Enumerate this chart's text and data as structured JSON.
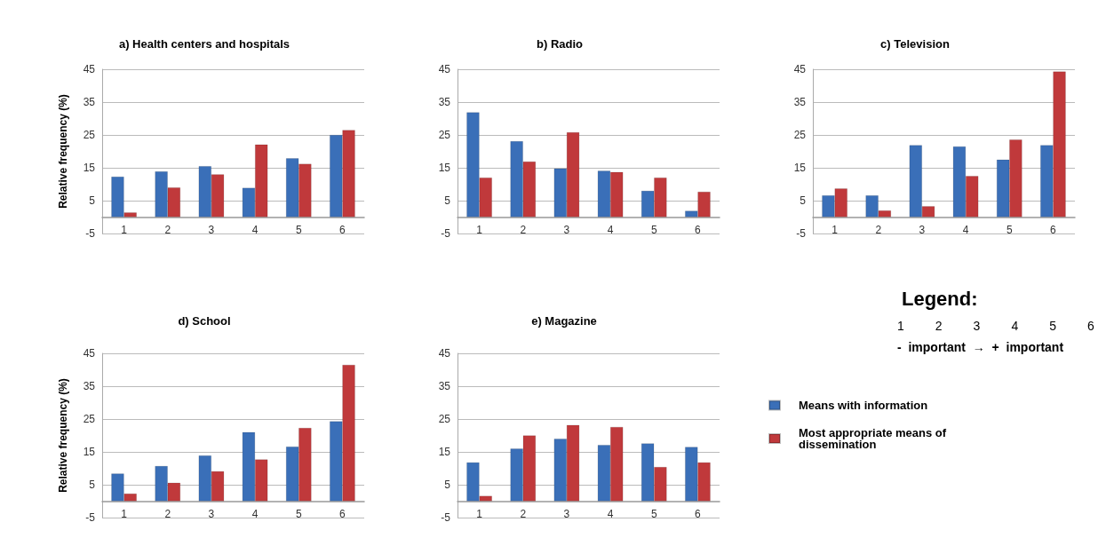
{
  "chart_data": [
    {
      "type": "bar",
      "title": "a) Health centers and hospitals",
      "ylabel": "Relative frequency (%)",
      "categories": [
        "1",
        "2",
        "3",
        "4",
        "5",
        "6"
      ],
      "series": [
        {
          "color": "#3a6fb8",
          "values": [
            12.3,
            13.9,
            15.5,
            8.9,
            17.9,
            25
          ]
        },
        {
          "color": "#c0393b",
          "values": [
            1.4,
            9,
            13,
            22.1,
            16.2,
            26.5
          ]
        }
      ],
      "ylim": [
        -5,
        45
      ],
      "yticks": [
        -5,
        5,
        15,
        25,
        35,
        45
      ],
      "grid": "y",
      "legend": false
    },
    {
      "type": "bar",
      "title": "b) Radio",
      "categories": [
        "1",
        "2",
        "3",
        "4",
        "5",
        "6"
      ],
      "series": [
        {
          "color": "#3a6fb8",
          "values": [
            31.9,
            23.1,
            14.8,
            14.1,
            8,
            1.9
          ]
        },
        {
          "color": "#c0393b",
          "values": [
            12,
            16.9,
            25.8,
            13.7,
            12,
            7.7
          ]
        }
      ],
      "ylim": [
        -5,
        45
      ],
      "yticks": [
        -5,
        5,
        15,
        25,
        35,
        45
      ],
      "grid": "y",
      "legend": false
    },
    {
      "type": "bar",
      "title": "c) Television",
      "categories": [
        "1",
        "2",
        "3",
        "4",
        "5",
        "6"
      ],
      "series": [
        {
          "color": "#3a6fb8",
          "values": [
            6.6,
            6.6,
            21.9,
            21.5,
            17.5,
            21.9
          ]
        },
        {
          "color": "#c0393b",
          "values": [
            8.7,
            2,
            3.3,
            12.5,
            23.6,
            44.3
          ]
        }
      ],
      "ylim": [
        -5,
        45
      ],
      "yticks": [
        -5,
        5,
        15,
        25,
        35,
        45
      ],
      "grid": "y",
      "legend": false
    },
    {
      "type": "bar",
      "title": "d) School",
      "ylabel": "Relative frequency (%)",
      "categories": [
        "1",
        "2",
        "3",
        "4",
        "5",
        "6"
      ],
      "series": [
        {
          "color": "#3a6fb8",
          "values": [
            8.4,
            10.7,
            13.9,
            21,
            16.6,
            24.3
          ]
        },
        {
          "color": "#c0393b",
          "values": [
            2.3,
            5.6,
            9.1,
            12.7,
            22.3,
            41.5
          ]
        }
      ],
      "ylim": [
        -5,
        45
      ],
      "yticks": [
        -5,
        5,
        15,
        25,
        35,
        45
      ],
      "grid": "y",
      "legend": false
    },
    {
      "type": "bar",
      "title": "e) Magazine",
      "categories": [
        "1",
        "2",
        "3",
        "4",
        "5",
        "6"
      ],
      "series": [
        {
          "name": "Means with information",
          "color": "#3a6fb8",
          "values": [
            11.8,
            16,
            19,
            17.1,
            17.6,
            16.5
          ]
        },
        {
          "name": "Most appropriate means of dissemination",
          "color": "#c0393b",
          "values": [
            1.6,
            20,
            23.2,
            22.6,
            10.4,
            11.8
          ]
        }
      ],
      "ylim": [
        -5,
        45
      ],
      "yticks": [
        -5,
        5,
        15,
        25,
        35,
        45
      ],
      "grid": "y",
      "legend": "right"
    },
    {
      "type": "other",
      "title": "Legend:",
      "annotations": [
        "1 2 3 4 5 6",
        "- important → + important"
      ]
    }
  ]
}
